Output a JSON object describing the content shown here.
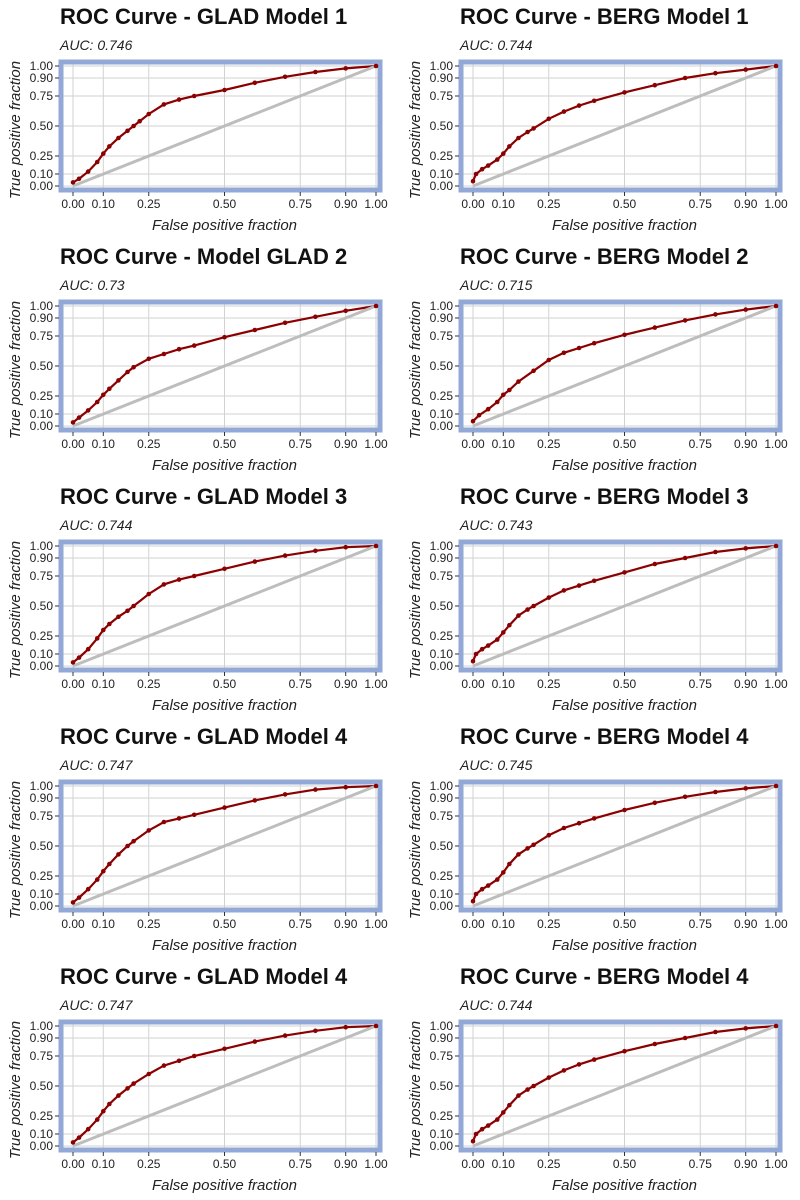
{
  "chart_data": [
    {
      "type": "line",
      "title": "ROC Curve - GLAD Model 1",
      "subtitle": "AUC: 0.746",
      "xlabel": "False positive fraction",
      "ylabel": "True positive fraction",
      "xticks": [
        "0.00",
        "0.10",
        "0.25",
        "0.50",
        "0.75",
        "0.90",
        "1.00"
      ],
      "yticks": [
        "0.00",
        "0.10",
        "0.25",
        "0.50",
        "0.75",
        "0.90",
        "1.00"
      ],
      "xlim": [
        0,
        1
      ],
      "ylim": [
        0,
        1
      ],
      "grid": true,
      "series": [
        {
          "color": "#8b0000",
          "x": [
            0,
            0.02,
            0.05,
            0.08,
            0.1,
            0.12,
            0.15,
            0.18,
            0.2,
            0.22,
            0.25,
            0.3,
            0.35,
            0.4,
            0.5,
            0.6,
            0.7,
            0.8,
            0.9,
            1.0
          ],
          "y": [
            0.03,
            0.06,
            0.12,
            0.2,
            0.27,
            0.33,
            0.4,
            0.46,
            0.5,
            0.54,
            0.6,
            0.68,
            0.72,
            0.75,
            0.8,
            0.86,
            0.91,
            0.95,
            0.98,
            1.0
          ]
        },
        {
          "color": "#bdbdbd",
          "x": [
            0,
            1
          ],
          "y": [
            0,
            1
          ]
        }
      ]
    },
    {
      "type": "line",
      "title": "ROC Curve - BERG Model 1",
      "subtitle": "AUC: 0.744",
      "xlabel": "False positive fraction",
      "ylabel": "True positive fraction",
      "xticks": [
        "0.00",
        "0.10",
        "0.25",
        "0.50",
        "0.75",
        "0.90",
        "1.00"
      ],
      "yticks": [
        "0.00",
        "0.10",
        "0.25",
        "0.50",
        "0.75",
        "0.90",
        "1.00"
      ],
      "xlim": [
        0,
        1
      ],
      "ylim": [
        0,
        1
      ],
      "grid": true,
      "series": [
        {
          "color": "#8b0000",
          "x": [
            0,
            0.01,
            0.03,
            0.05,
            0.08,
            0.1,
            0.12,
            0.15,
            0.18,
            0.2,
            0.25,
            0.3,
            0.35,
            0.4,
            0.5,
            0.6,
            0.7,
            0.8,
            0.9,
            1.0
          ],
          "y": [
            0.04,
            0.1,
            0.14,
            0.17,
            0.22,
            0.27,
            0.33,
            0.4,
            0.45,
            0.48,
            0.56,
            0.62,
            0.67,
            0.71,
            0.78,
            0.84,
            0.9,
            0.94,
            0.97,
            1.0
          ]
        },
        {
          "color": "#bdbdbd",
          "x": [
            0,
            1
          ],
          "y": [
            0,
            1
          ]
        }
      ]
    },
    {
      "type": "line",
      "title": "ROC Curve - Model GLAD 2",
      "subtitle": "AUC: 0.73",
      "xlabel": "False positive fraction",
      "ylabel": "True positive fraction",
      "xticks": [
        "0.00",
        "0.10",
        "0.25",
        "0.50",
        "0.75",
        "0.90",
        "1.00"
      ],
      "yticks": [
        "0.00",
        "0.10",
        "0.25",
        "0.50",
        "0.75",
        "0.90",
        "1.00"
      ],
      "xlim": [
        0,
        1
      ],
      "ylim": [
        0,
        1
      ],
      "grid": true,
      "series": [
        {
          "color": "#8b0000",
          "x": [
            0,
            0.02,
            0.05,
            0.08,
            0.1,
            0.12,
            0.15,
            0.18,
            0.2,
            0.25,
            0.3,
            0.35,
            0.4,
            0.5,
            0.6,
            0.7,
            0.8,
            0.9,
            1.0
          ],
          "y": [
            0.03,
            0.07,
            0.13,
            0.2,
            0.26,
            0.31,
            0.38,
            0.45,
            0.49,
            0.56,
            0.6,
            0.64,
            0.67,
            0.74,
            0.8,
            0.86,
            0.91,
            0.96,
            1.0
          ]
        },
        {
          "color": "#bdbdbd",
          "x": [
            0,
            1
          ],
          "y": [
            0,
            1
          ]
        }
      ]
    },
    {
      "type": "line",
      "title": "ROC Curve - BERG Model 2",
      "subtitle": "AUC: 0.715",
      "xlabel": "False positive fraction",
      "ylabel": "True positive fraction",
      "xticks": [
        "0.00",
        "0.10",
        "0.25",
        "0.50",
        "0.75",
        "0.90",
        "1.00"
      ],
      "yticks": [
        "0.00",
        "0.10",
        "0.25",
        "0.50",
        "0.75",
        "0.90",
        "1.00"
      ],
      "xlim": [
        0,
        1
      ],
      "ylim": [
        0,
        1
      ],
      "grid": true,
      "series": [
        {
          "color": "#8b0000",
          "x": [
            0,
            0.02,
            0.05,
            0.08,
            0.1,
            0.12,
            0.15,
            0.2,
            0.25,
            0.3,
            0.35,
            0.4,
            0.5,
            0.6,
            0.7,
            0.8,
            0.9,
            1.0
          ],
          "y": [
            0.04,
            0.09,
            0.14,
            0.2,
            0.26,
            0.3,
            0.37,
            0.46,
            0.55,
            0.61,
            0.65,
            0.69,
            0.76,
            0.82,
            0.88,
            0.93,
            0.97,
            1.0
          ]
        },
        {
          "color": "#bdbdbd",
          "x": [
            0,
            1
          ],
          "y": [
            0,
            1
          ]
        }
      ]
    },
    {
      "type": "line",
      "title": "ROC Curve - GLAD Model 3",
      "subtitle": "AUC: 0.744",
      "xlabel": "False positive fraction",
      "ylabel": "True positive fraction",
      "xticks": [
        "0.00",
        "0.10",
        "0.25",
        "0.50",
        "0.75",
        "0.90",
        "1.00"
      ],
      "yticks": [
        "0.00",
        "0.10",
        "0.25",
        "0.50",
        "0.75",
        "0.90",
        "1.00"
      ],
      "xlim": [
        0,
        1
      ],
      "ylim": [
        0,
        1
      ],
      "grid": true,
      "series": [
        {
          "color": "#8b0000",
          "x": [
            0,
            0.02,
            0.05,
            0.08,
            0.1,
            0.12,
            0.15,
            0.18,
            0.2,
            0.25,
            0.3,
            0.35,
            0.4,
            0.5,
            0.6,
            0.7,
            0.8,
            0.9,
            1.0
          ],
          "y": [
            0.03,
            0.07,
            0.14,
            0.23,
            0.3,
            0.35,
            0.41,
            0.46,
            0.5,
            0.6,
            0.68,
            0.72,
            0.75,
            0.81,
            0.87,
            0.92,
            0.96,
            0.99,
            1.0
          ]
        },
        {
          "color": "#bdbdbd",
          "x": [
            0,
            1
          ],
          "y": [
            0,
            1
          ]
        }
      ]
    },
    {
      "type": "line",
      "title": "ROC Curve - BERG Model 3",
      "subtitle": "AUC: 0.743",
      "xlabel": "False positive fraction",
      "ylabel": "True positive fraction",
      "xticks": [
        "0.00",
        "0.10",
        "0.25",
        "0.50",
        "0.75",
        "0.90",
        "1.00"
      ],
      "yticks": [
        "0.00",
        "0.10",
        "0.25",
        "0.50",
        "0.75",
        "0.90",
        "1.00"
      ],
      "xlim": [
        0,
        1
      ],
      "ylim": [
        0,
        1
      ],
      "grid": true,
      "series": [
        {
          "color": "#8b0000",
          "x": [
            0,
            0.01,
            0.03,
            0.05,
            0.08,
            0.1,
            0.12,
            0.15,
            0.18,
            0.2,
            0.25,
            0.3,
            0.35,
            0.4,
            0.5,
            0.6,
            0.7,
            0.8,
            0.9,
            1.0
          ],
          "y": [
            0.04,
            0.1,
            0.14,
            0.17,
            0.22,
            0.28,
            0.34,
            0.42,
            0.47,
            0.5,
            0.57,
            0.63,
            0.67,
            0.71,
            0.78,
            0.85,
            0.9,
            0.95,
            0.98,
            1.0
          ]
        },
        {
          "color": "#bdbdbd",
          "x": [
            0,
            1
          ],
          "y": [
            0,
            1
          ]
        }
      ]
    },
    {
      "type": "line",
      "title": "ROC Curve - GLAD Model 4",
      "subtitle": "AUC: 0.747",
      "xlabel": "False positive fraction",
      "ylabel": "True positive fraction",
      "xticks": [
        "0.00",
        "0.10",
        "0.25",
        "0.50",
        "0.75",
        "0.90",
        "1.00"
      ],
      "yticks": [
        "0.00",
        "0.10",
        "0.25",
        "0.50",
        "0.75",
        "0.90",
        "1.00"
      ],
      "xlim": [
        0,
        1
      ],
      "ylim": [
        0,
        1
      ],
      "grid": true,
      "series": [
        {
          "color": "#8b0000",
          "x": [
            0,
            0.02,
            0.05,
            0.08,
            0.1,
            0.12,
            0.15,
            0.18,
            0.2,
            0.25,
            0.3,
            0.35,
            0.4,
            0.5,
            0.6,
            0.7,
            0.8,
            0.9,
            1.0
          ],
          "y": [
            0.03,
            0.07,
            0.14,
            0.22,
            0.29,
            0.35,
            0.43,
            0.5,
            0.54,
            0.63,
            0.7,
            0.73,
            0.76,
            0.82,
            0.88,
            0.93,
            0.97,
            0.99,
            1.0
          ]
        },
        {
          "color": "#bdbdbd",
          "x": [
            0,
            1
          ],
          "y": [
            0,
            1
          ]
        }
      ]
    },
    {
      "type": "line",
      "title": "ROC Curve - BERG Model 4",
      "subtitle": "AUC: 0.745",
      "xlabel": "False positive fraction",
      "ylabel": "True positive fraction",
      "xticks": [
        "0.00",
        "0.10",
        "0.25",
        "0.50",
        "0.75",
        "0.90",
        "1.00"
      ],
      "yticks": [
        "0.00",
        "0.10",
        "0.25",
        "0.50",
        "0.75",
        "0.90",
        "1.00"
      ],
      "xlim": [
        0,
        1
      ],
      "ylim": [
        0,
        1
      ],
      "grid": true,
      "series": [
        {
          "color": "#8b0000",
          "x": [
            0,
            0.01,
            0.03,
            0.05,
            0.08,
            0.1,
            0.12,
            0.15,
            0.18,
            0.2,
            0.25,
            0.3,
            0.35,
            0.4,
            0.5,
            0.6,
            0.7,
            0.8,
            0.9,
            1.0
          ],
          "y": [
            0.04,
            0.1,
            0.14,
            0.17,
            0.22,
            0.28,
            0.35,
            0.43,
            0.48,
            0.51,
            0.59,
            0.65,
            0.69,
            0.73,
            0.8,
            0.86,
            0.91,
            0.95,
            0.98,
            1.0
          ]
        },
        {
          "color": "#bdbdbd",
          "x": [
            0,
            1
          ],
          "y": [
            0,
            1
          ]
        }
      ]
    },
    {
      "type": "line",
      "title": "ROC Curve - GLAD Model 4",
      "subtitle": "AUC: 0.747",
      "xlabel": "False positive fraction",
      "ylabel": "True positive fraction",
      "xticks": [
        "0.00",
        "0.10",
        "0.25",
        "0.50",
        "0.75",
        "0.90",
        "1.00"
      ],
      "yticks": [
        "0.00",
        "0.10",
        "0.25",
        "0.50",
        "0.75",
        "0.90",
        "1.00"
      ],
      "xlim": [
        0,
        1
      ],
      "ylim": [
        0,
        1
      ],
      "grid": true,
      "series": [
        {
          "color": "#8b0000",
          "x": [
            0,
            0.02,
            0.05,
            0.08,
            0.1,
            0.12,
            0.15,
            0.18,
            0.2,
            0.25,
            0.3,
            0.35,
            0.4,
            0.5,
            0.6,
            0.7,
            0.8,
            0.9,
            1.0
          ],
          "y": [
            0.03,
            0.07,
            0.14,
            0.22,
            0.29,
            0.35,
            0.42,
            0.48,
            0.52,
            0.6,
            0.67,
            0.71,
            0.75,
            0.81,
            0.87,
            0.92,
            0.96,
            0.99,
            1.0
          ]
        },
        {
          "color": "#bdbdbd",
          "x": [
            0,
            1
          ],
          "y": [
            0,
            1
          ]
        }
      ]
    },
    {
      "type": "line",
      "title": "ROC Curve - BERG Model 4",
      "subtitle": "AUC: 0.744",
      "xlabel": "False positive fraction",
      "ylabel": "True positive fraction",
      "xticks": [
        "0.00",
        "0.10",
        "0.25",
        "0.50",
        "0.75",
        "0.90",
        "1.00"
      ],
      "yticks": [
        "0.00",
        "0.10",
        "0.25",
        "0.50",
        "0.75",
        "0.90",
        "1.00"
      ],
      "xlim": [
        0,
        1
      ],
      "ylim": [
        0,
        1
      ],
      "grid": true,
      "series": [
        {
          "color": "#8b0000",
          "x": [
            0,
            0.01,
            0.03,
            0.05,
            0.08,
            0.1,
            0.12,
            0.15,
            0.18,
            0.2,
            0.25,
            0.3,
            0.35,
            0.4,
            0.5,
            0.6,
            0.7,
            0.8,
            0.9,
            1.0
          ],
          "y": [
            0.04,
            0.1,
            0.14,
            0.17,
            0.22,
            0.28,
            0.34,
            0.42,
            0.47,
            0.5,
            0.57,
            0.63,
            0.68,
            0.72,
            0.79,
            0.85,
            0.9,
            0.95,
            0.98,
            1.0
          ]
        },
        {
          "color": "#bdbdbd",
          "x": [
            0,
            1
          ],
          "y": [
            0,
            1
          ]
        }
      ]
    }
  ],
  "style": {
    "frame_color": "#92a9d8",
    "grid_color": "#d2d2d2",
    "roc_color": "#8b0000",
    "diagonal_color": "#bdbdbd"
  }
}
